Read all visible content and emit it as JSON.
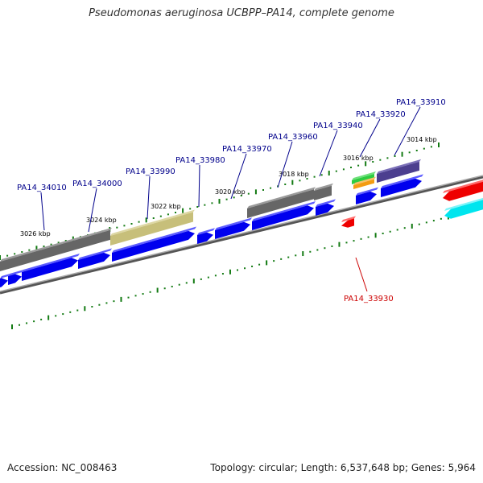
{
  "title": "Pseudomonas aeruginosa UCBPP–PA14, complete genome",
  "footer": {
    "accession": "Accession: NC_008463",
    "summary": "Topology: circular; Length: 6,537,648 bp; Genes: 5,964"
  },
  "colors": {
    "forward_gene": "#0000ee",
    "reverse_gene": "#ee0000",
    "cyan_gene": "#00e5ee",
    "tick": "#127a12",
    "backbone": "#888888",
    "forward_label": "#00008b",
    "reverse_label": "#cc0000"
  },
  "scale_labels": [
    "3026 kbp",
    "3024 kbp",
    "3022 kbp",
    "3020 kbp",
    "3018 kbp",
    "3016 kbp",
    "3014 kbp"
  ],
  "forward_gene_labels": [
    "PA14_34010",
    "PA14_34000",
    "PA14_33990",
    "PA14_33980",
    "PA14_33970",
    "PA14_33960",
    "PA14_33940",
    "PA14_33920",
    "PA14_33910"
  ],
  "reverse_gene_labels": [
    "PA14_33930"
  ]
}
